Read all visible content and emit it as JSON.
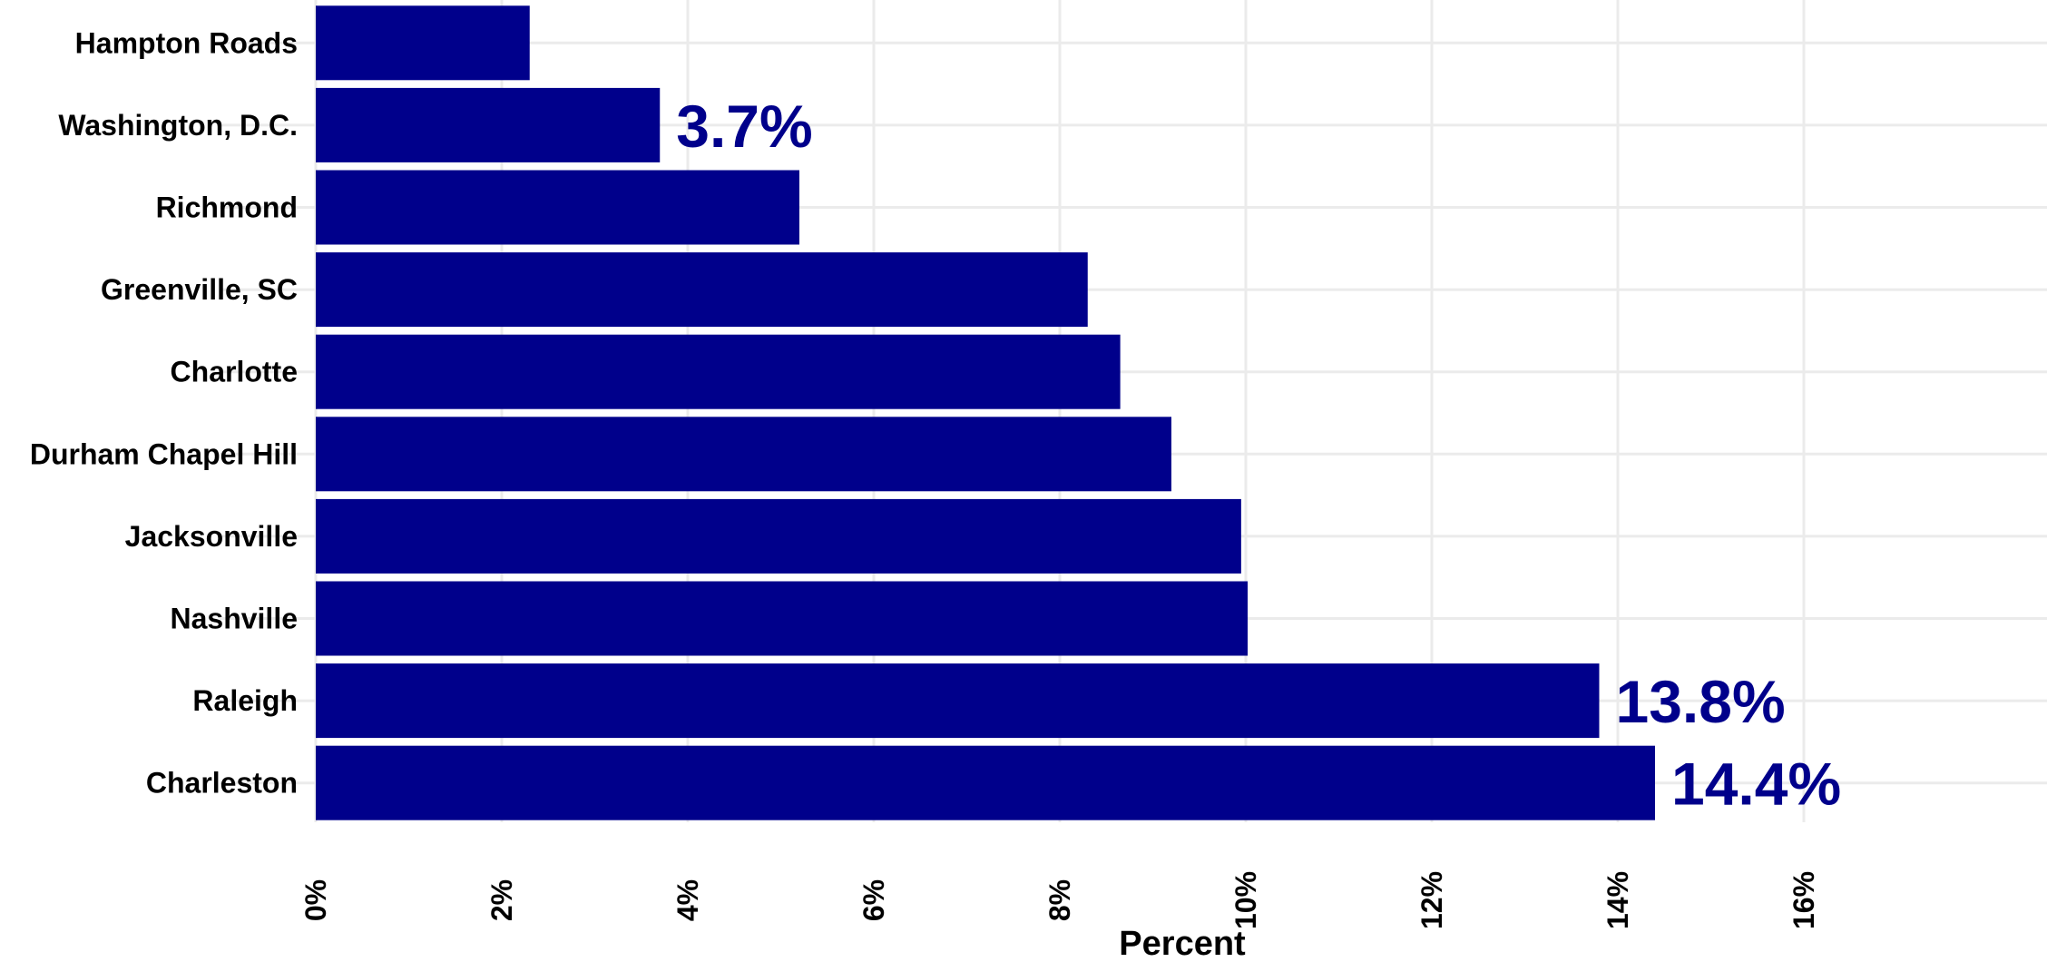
{
  "chart_data": {
    "type": "bar",
    "orientation": "horizontal",
    "categories": [
      "Hampton Roads",
      "Washington, D.C.",
      "Richmond",
      "Greenville, SC",
      "Charlotte",
      "Durham Chapel Hill",
      "Jacksonville",
      "Nashville",
      "Raleigh",
      "Charleston"
    ],
    "values": [
      2.3,
      3.7,
      5.2,
      8.3,
      8.65,
      9.2,
      9.95,
      10.02,
      13.8,
      14.4
    ],
    "data_labels": [
      {
        "category": "Washington, D.C.",
        "text": "3.7%"
      },
      {
        "category": "Raleigh",
        "text": "13.8%"
      },
      {
        "category": "Charleston",
        "text": "14.4%"
      }
    ],
    "x_ticks": [
      "0%",
      "2%",
      "4%",
      "6%",
      "8%",
      "10%",
      "12%",
      "14%",
      "16%"
    ],
    "xlim": [
      0,
      16.6
    ],
    "xlabel": "Percent",
    "ylabel": "",
    "title": "",
    "grid": true,
    "legend": "none",
    "colors": {
      "bar": "#00008b",
      "label": "#00008b",
      "grid": "#ebebeb"
    }
  }
}
